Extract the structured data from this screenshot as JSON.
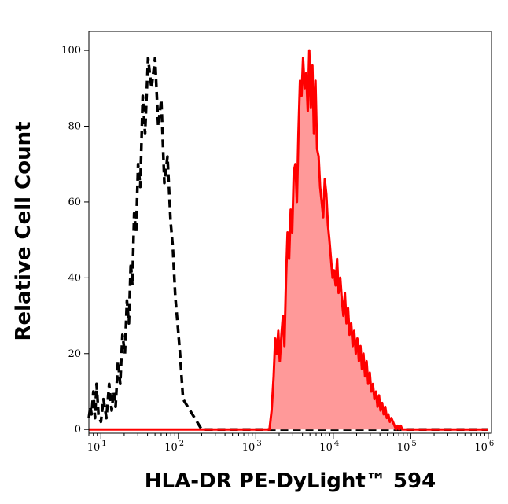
{
  "chart_data": {
    "type": "area",
    "xlabel": "HLA-DR PE-DyLight™ 594",
    "ylabel": "Relative Cell Count",
    "x_scale": "log",
    "xlim": [
      7,
      1100000
    ],
    "ylim": [
      -1,
      105
    ],
    "x_ticks": [
      {
        "base": "10",
        "exp": "1",
        "value": 10
      },
      {
        "base": "10",
        "exp": "2",
        "value": 100
      },
      {
        "base": "10",
        "exp": "3",
        "value": 1000
      },
      {
        "base": "10",
        "exp": "4",
        "value": 10000
      },
      {
        "base": "10",
        "exp": "5",
        "value": 100000
      },
      {
        "base": "10",
        "exp": "6",
        "value": 1000000
      }
    ],
    "y_ticks": [
      0,
      20,
      40,
      60,
      80,
      100
    ],
    "series": [
      {
        "style": "dashed",
        "color": "#000000",
        "fill": "none",
        "x": [
          7,
          7.3,
          7.6,
          8,
          8.4,
          8.8,
          9.3,
          10,
          10.8,
          11.8,
          12.8,
          13.8,
          14.6,
          15.5,
          16.6,
          17.8,
          19,
          20.4,
          21.7,
          23,
          24.3,
          25.5,
          26.9,
          28.5,
          30.2,
          32.3,
          34.7,
          37.2,
          40.7,
          45,
          50.1,
          55,
          60.3,
          66,
          72.4,
          79.4,
          85,
          91.2,
          97.7,
          105,
          115,
          200,
          1000,
          3000,
          10000,
          30000,
          100000,
          1000000
        ],
        "y": [
          3,
          6,
          4,
          10,
          3,
          12,
          4,
          2,
          8,
          3,
          12,
          5,
          10,
          6,
          18,
          12,
          25,
          20,
          34,
          28,
          44,
          38,
          57,
          52,
          70,
          64,
          88,
          78,
          98,
          90,
          98,
          80,
          87,
          65,
          72,
          55,
          48,
          35,
          28,
          20,
          8,
          0,
          0,
          0,
          0,
          0,
          0,
          0
        ]
      },
      {
        "style": "solid",
        "color": "#ff0000",
        "fill": "#ff9999",
        "x": [
          7,
          1000,
          1500,
          1600,
          1700,
          1780,
          1860,
          1950,
          2040,
          2140,
          2240,
          2340,
          2460,
          2570,
          2690,
          2820,
          2950,
          3090,
          3240,
          3390,
          3550,
          3720,
          3890,
          4070,
          4270,
          4470,
          4680,
          4900,
          5130,
          5370,
          5620,
          5890,
          6170,
          6460,
          6760,
          7080,
          7410,
          7760,
          8130,
          8510,
          8910,
          9330,
          9770,
          10200,
          10700,
          11200,
          11700,
          12300,
          12900,
          13500,
          14100,
          14800,
          15500,
          16200,
          17000,
          17800,
          18600,
          19500,
          20400,
          21400,
          22400,
          23400,
          24500,
          25700,
          26900,
          28200,
          29500,
          30900,
          32400,
          33900,
          35500,
          37200,
          38900,
          40700,
          42700,
          44700,
          46800,
          49000,
          51300,
          53700,
          56200,
          58900,
          61700,
          64600,
          67600,
          70800,
          74100,
          77600,
          81300,
          85100,
          89100,
          93300,
          97700,
          102000,
          107000,
          112000,
          118000,
          124000,
          130000,
          200000,
          500000,
          1000000
        ],
        "y": [
          0,
          0,
          0,
          5,
          14,
          24,
          20,
          26,
          18,
          25,
          30,
          22,
          40,
          52,
          45,
          58,
          52,
          68,
          70,
          60,
          78,
          92,
          88,
          98,
          90,
          94,
          84,
          100,
          85,
          96,
          78,
          92,
          74,
          72,
          64,
          60,
          56,
          66,
          62,
          54,
          50,
          45,
          40,
          42,
          38,
          45,
          36,
          40,
          34,
          30,
          36,
          28,
          32,
          25,
          28,
          22,
          26,
          20,
          24,
          18,
          22,
          16,
          20,
          14,
          18,
          12,
          15,
          10,
          12,
          8,
          10,
          6,
          9,
          5,
          7,
          4,
          6,
          3,
          4,
          2,
          3,
          2,
          1,
          0,
          1,
          0,
          1,
          0,
          0,
          0,
          0,
          0,
          0,
          0,
          0,
          0,
          0,
          0,
          0,
          0,
          0,
          0
        ]
      }
    ]
  }
}
